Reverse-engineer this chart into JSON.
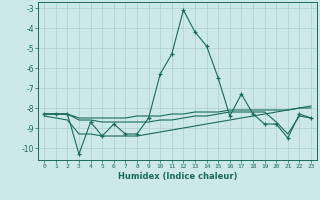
{
  "xlabel": "Humidex (Indice chaleur)",
  "x": [
    0,
    1,
    2,
    3,
    4,
    5,
    6,
    7,
    8,
    9,
    10,
    11,
    12,
    13,
    14,
    15,
    16,
    17,
    18,
    19,
    20,
    21,
    22,
    23
  ],
  "main_line": [
    -8.3,
    -8.3,
    -8.3,
    -10.3,
    -8.7,
    -9.4,
    -8.8,
    -9.3,
    -9.3,
    -8.5,
    -6.3,
    -5.3,
    -3.1,
    -4.2,
    -4.9,
    -6.5,
    -8.4,
    -7.3,
    -8.3,
    -8.8,
    -8.8,
    -9.5,
    -8.3,
    -8.5
  ],
  "line2": [
    -8.3,
    -8.3,
    -8.3,
    -8.5,
    -8.5,
    -8.5,
    -8.5,
    -8.5,
    -8.4,
    -8.4,
    -8.4,
    -8.3,
    -8.3,
    -8.2,
    -8.2,
    -8.2,
    -8.1,
    -8.1,
    -8.1,
    -8.1,
    -8.1,
    -8.1,
    -8.0,
    -8.0
  ],
  "line3": [
    -8.3,
    -8.3,
    -8.3,
    -8.6,
    -8.6,
    -8.7,
    -8.7,
    -8.7,
    -8.7,
    -8.7,
    -8.6,
    -8.6,
    -8.5,
    -8.4,
    -8.4,
    -8.3,
    -8.2,
    -8.2,
    -8.2,
    -8.2,
    -8.7,
    -9.3,
    -8.4,
    -8.5
  ],
  "line4": [
    -8.4,
    -8.5,
    -8.6,
    -9.3,
    -9.3,
    -9.4,
    -9.4,
    -9.4,
    -9.4,
    -9.3,
    -9.2,
    -9.1,
    -9.0,
    -8.9,
    -8.8,
    -8.7,
    -8.6,
    -8.5,
    -8.4,
    -8.3,
    -8.2,
    -8.1,
    -8.0,
    -7.9
  ],
  "line_color": "#1a6b5a",
  "background_color": "#cce8e8",
  "grid_color": "#b0cece",
  "ylim": [
    -10.6,
    -2.7
  ],
  "yticks": [
    -3,
    -4,
    -5,
    -6,
    -7,
    -8,
    -9,
    -10
  ],
  "xticks": [
    0,
    1,
    2,
    3,
    4,
    5,
    6,
    7,
    8,
    9,
    10,
    11,
    12,
    13,
    14,
    15,
    16,
    17,
    18,
    19,
    20,
    21,
    22,
    23
  ]
}
